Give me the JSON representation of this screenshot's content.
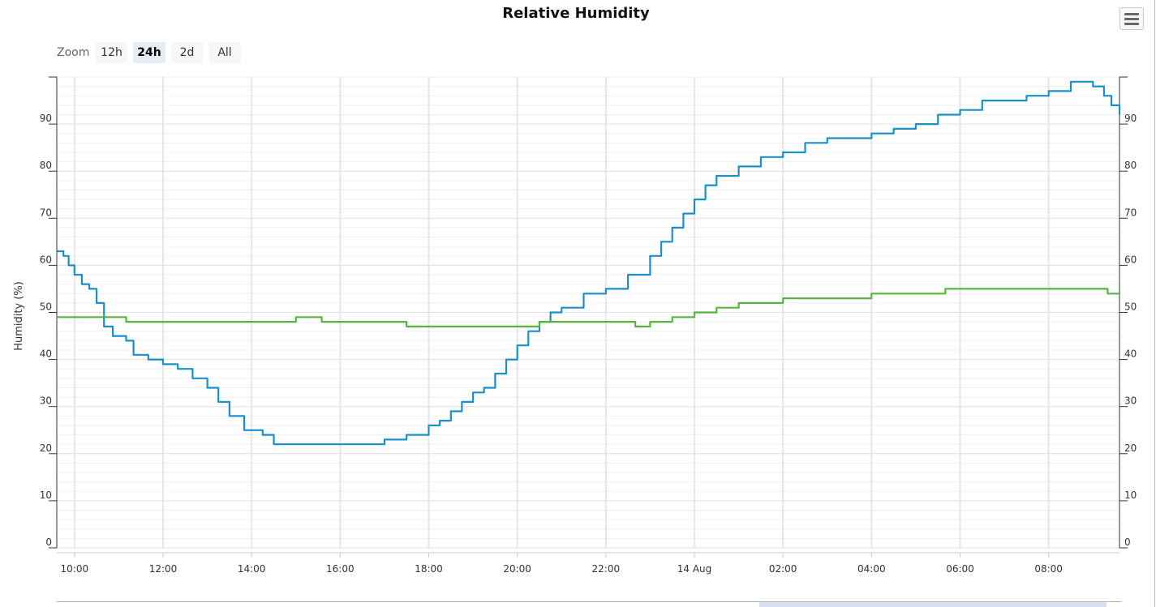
{
  "zoom": {
    "label": "Zoom",
    "buttons": [
      "12h",
      "24h",
      "2d",
      "All"
    ],
    "selected": "24h"
  },
  "chart_data": {
    "type": "line",
    "title": "Relative Humidity",
    "ylabel": "Humidity (%)",
    "xlabel": "",
    "ylim": [
      0,
      100
    ],
    "yticks": [
      0,
      10,
      20,
      30,
      40,
      50,
      60,
      70,
      80,
      90
    ],
    "xlim": [
      "2023-08-13 09:36",
      "2023-08-14 09:36"
    ],
    "xticks": [
      {
        "t": "2023-08-13 10:00",
        "label": "10:00"
      },
      {
        "t": "2023-08-13 12:00",
        "label": "12:00"
      },
      {
        "t": "2023-08-13 14:00",
        "label": "14:00"
      },
      {
        "t": "2023-08-13 16:00",
        "label": "16:00"
      },
      {
        "t": "2023-08-13 18:00",
        "label": "18:00"
      },
      {
        "t": "2023-08-13 20:00",
        "label": "20:00"
      },
      {
        "t": "2023-08-13 22:00",
        "label": "22:00"
      },
      {
        "t": "2023-08-14 00:00",
        "label": "14 Aug"
      },
      {
        "t": "2023-08-14 02:00",
        "label": "02:00"
      },
      {
        "t": "2023-08-14 04:00",
        "label": "04:00"
      },
      {
        "t": "2023-08-14 06:00",
        "label": "06:00"
      },
      {
        "t": "2023-08-14 08:00",
        "label": "08:00"
      }
    ],
    "grid": true,
    "dual_y_axis": true,
    "series": [
      {
        "color": "#1a8fc9",
        "points": [
          [
            "2023-08-13 09:36",
            63
          ],
          [
            "2023-08-13 09:45",
            62
          ],
          [
            "2023-08-13 09:52",
            60
          ],
          [
            "2023-08-13 10:00",
            58
          ],
          [
            "2023-08-13 10:10",
            56
          ],
          [
            "2023-08-13 10:20",
            55
          ],
          [
            "2023-08-13 10:30",
            52
          ],
          [
            "2023-08-13 10:40",
            47
          ],
          [
            "2023-08-13 10:52",
            45
          ],
          [
            "2023-08-13 11:10",
            44
          ],
          [
            "2023-08-13 11:20",
            41
          ],
          [
            "2023-08-13 11:40",
            40
          ],
          [
            "2023-08-13 12:00",
            39
          ],
          [
            "2023-08-13 12:20",
            38
          ],
          [
            "2023-08-13 12:40",
            36
          ],
          [
            "2023-08-13 13:00",
            34
          ],
          [
            "2023-08-13 13:15",
            31
          ],
          [
            "2023-08-13 13:30",
            28
          ],
          [
            "2023-08-13 13:50",
            25
          ],
          [
            "2023-08-13 14:15",
            24
          ],
          [
            "2023-08-13 14:30",
            22
          ],
          [
            "2023-08-13 15:00",
            22
          ],
          [
            "2023-08-13 15:30",
            22
          ],
          [
            "2023-08-13 16:00",
            22
          ],
          [
            "2023-08-13 16:40",
            22
          ],
          [
            "2023-08-13 17:00",
            23
          ],
          [
            "2023-08-13 17:30",
            24
          ],
          [
            "2023-08-13 18:00",
            26
          ],
          [
            "2023-08-13 18:15",
            27
          ],
          [
            "2023-08-13 18:30",
            29
          ],
          [
            "2023-08-13 18:45",
            31
          ],
          [
            "2023-08-13 19:00",
            33
          ],
          [
            "2023-08-13 19:15",
            34
          ],
          [
            "2023-08-13 19:30",
            37
          ],
          [
            "2023-08-13 19:45",
            40
          ],
          [
            "2023-08-13 20:00",
            43
          ],
          [
            "2023-08-13 20:15",
            46
          ],
          [
            "2023-08-13 20:30",
            48
          ],
          [
            "2023-08-13 20:45",
            50
          ],
          [
            "2023-08-13 21:00",
            51
          ],
          [
            "2023-08-13 21:30",
            54
          ],
          [
            "2023-08-13 22:00",
            55
          ],
          [
            "2023-08-13 22:30",
            58
          ],
          [
            "2023-08-13 23:00",
            62
          ],
          [
            "2023-08-13 23:15",
            65
          ],
          [
            "2023-08-13 23:30",
            68
          ],
          [
            "2023-08-13 23:45",
            71
          ],
          [
            "2023-08-14 00:00",
            74
          ],
          [
            "2023-08-14 00:15",
            77
          ],
          [
            "2023-08-14 00:30",
            79
          ],
          [
            "2023-08-14 01:00",
            81
          ],
          [
            "2023-08-14 01:30",
            83
          ],
          [
            "2023-08-14 02:00",
            84
          ],
          [
            "2023-08-14 02:30",
            86
          ],
          [
            "2023-08-14 03:00",
            87
          ],
          [
            "2023-08-14 03:30",
            87
          ],
          [
            "2023-08-14 04:00",
            88
          ],
          [
            "2023-08-14 04:30",
            89
          ],
          [
            "2023-08-14 05:00",
            90
          ],
          [
            "2023-08-14 05:30",
            92
          ],
          [
            "2023-08-14 06:00",
            93
          ],
          [
            "2023-08-14 06:30",
            95
          ],
          [
            "2023-08-14 07:00",
            95
          ],
          [
            "2023-08-14 07:30",
            96
          ],
          [
            "2023-08-14 08:00",
            97
          ],
          [
            "2023-08-14 08:30",
            99
          ],
          [
            "2023-08-14 08:50",
            99
          ],
          [
            "2023-08-14 09:00",
            98
          ],
          [
            "2023-08-14 09:15",
            96
          ],
          [
            "2023-08-14 09:25",
            94
          ],
          [
            "2023-08-14 09:36",
            92
          ]
        ]
      },
      {
        "color": "#57b53c",
        "points": [
          [
            "2023-08-13 09:36",
            49
          ],
          [
            "2023-08-13 10:30",
            49
          ],
          [
            "2023-08-13 11:10",
            48
          ],
          [
            "2023-08-13 12:00",
            48
          ],
          [
            "2023-08-13 14:00",
            48
          ],
          [
            "2023-08-13 14:50",
            48
          ],
          [
            "2023-08-13 15:00",
            49
          ],
          [
            "2023-08-13 15:30",
            49
          ],
          [
            "2023-08-13 15:35",
            48
          ],
          [
            "2023-08-13 17:00",
            48
          ],
          [
            "2023-08-13 17:30",
            47
          ],
          [
            "2023-08-13 19:00",
            47
          ],
          [
            "2023-08-13 20:15",
            47
          ],
          [
            "2023-08-13 20:30",
            48
          ],
          [
            "2023-08-13 22:00",
            48
          ],
          [
            "2023-08-13 22:30",
            48
          ],
          [
            "2023-08-13 22:40",
            47
          ],
          [
            "2023-08-13 23:00",
            48
          ],
          [
            "2023-08-13 23:30",
            49
          ],
          [
            "2023-08-14 00:00",
            50
          ],
          [
            "2023-08-14 00:30",
            51
          ],
          [
            "2023-08-14 01:00",
            52
          ],
          [
            "2023-08-14 02:00",
            53
          ],
          [
            "2023-08-14 03:00",
            53
          ],
          [
            "2023-08-14 04:00",
            54
          ],
          [
            "2023-08-14 05:00",
            54
          ],
          [
            "2023-08-14 05:40",
            55
          ],
          [
            "2023-08-14 07:00",
            55
          ],
          [
            "2023-08-14 07:40",
            55
          ],
          [
            "2023-08-14 08:30",
            55
          ],
          [
            "2023-08-14 09:00",
            55
          ],
          [
            "2023-08-14 09:20",
            54
          ],
          [
            "2023-08-14 09:36",
            54
          ]
        ]
      }
    ]
  }
}
